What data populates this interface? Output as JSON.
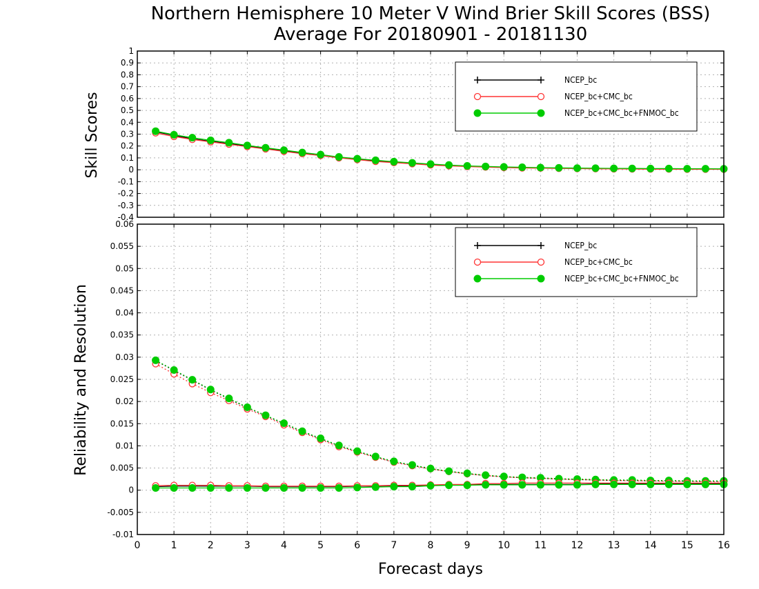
{
  "figure": {
    "title_line1": "Northern Hemisphere 10 Meter V Wind Brier Skill Scores (BSS)",
    "title_line2": "Average For 20180901 - 20181130",
    "xlabel": "Forecast days"
  },
  "chart_data": [
    {
      "type": "line",
      "ylabel": "Skill Scores",
      "xlim": [
        0,
        16
      ],
      "ylim": [
        -0.4,
        1
      ],
      "yticks": [
        "1",
        "0.9",
        "0.8",
        "0.7",
        "0.6",
        "0.5",
        "0.4",
        "0.3",
        "0.2",
        "0.1",
        "0",
        "-0.1",
        "-0.2",
        "-0.3",
        "-0.4"
      ],
      "grid": true,
      "legend_position": "top-right",
      "x": [
        0.5,
        1,
        1.5,
        2,
        2.5,
        3,
        3.5,
        4,
        4.5,
        5,
        5.5,
        6,
        6.5,
        7,
        7.5,
        8,
        8.5,
        9,
        9.5,
        10,
        10.5,
        11,
        11.5,
        12,
        12.5,
        13,
        13.5,
        14,
        14.5,
        15,
        15.5,
        16
      ],
      "series": [
        {
          "name": "NCEP_bc",
          "color": "#000000",
          "marker": "plus",
          "values": [
            0.32,
            0.29,
            0.26,
            0.24,
            0.22,
            0.2,
            0.18,
            0.16,
            0.14,
            0.12,
            0.1,
            0.09,
            0.075,
            0.065,
            0.055,
            0.045,
            0.035,
            0.03,
            0.025,
            0.02,
            0.018,
            0.015,
            0.013,
            0.012,
            0.01,
            0.01,
            0.008,
            0.008,
            0.007,
            0.007,
            0.006,
            0.006
          ]
        },
        {
          "name": "NCEP_bc+CMC_bc",
          "color": "#ff3333",
          "marker": "open-circle",
          "values": [
            0.31,
            0.28,
            0.255,
            0.235,
            0.215,
            0.195,
            0.175,
            0.155,
            0.135,
            0.12,
            0.1,
            0.085,
            0.07,
            0.06,
            0.05,
            0.04,
            0.033,
            0.027,
            0.022,
            0.018,
            0.015,
            0.013,
            0.011,
            0.01,
            0.008,
            0.007,
            0.006,
            0.005,
            0.005,
            0.004,
            0.004,
            0.004
          ]
        },
        {
          "name": "NCEP_bc+CMC_bc+FNMOC_bc",
          "color": "#00cc00",
          "marker": "filled-circle",
          "values": [
            0.325,
            0.295,
            0.27,
            0.248,
            0.228,
            0.205,
            0.185,
            0.165,
            0.145,
            0.128,
            0.108,
            0.093,
            0.08,
            0.068,
            0.058,
            0.048,
            0.04,
            0.033,
            0.028,
            0.024,
            0.021,
            0.018,
            0.016,
            0.014,
            0.013,
            0.012,
            0.011,
            0.01,
            0.01,
            0.009,
            0.009,
            0.008
          ]
        }
      ]
    },
    {
      "type": "line",
      "ylabel": "Reliability and Resolution",
      "xlim": [
        0,
        16
      ],
      "ylim": [
        -0.01,
        0.06
      ],
      "xticks": [
        "0",
        "1",
        "2",
        "3",
        "4",
        "5",
        "6",
        "7",
        "8",
        "9",
        "10",
        "11",
        "12",
        "13",
        "14",
        "15",
        "16"
      ],
      "yticks": [
        "0.06",
        "0.055",
        "0.05",
        "0.045",
        "0.04",
        "0.035",
        "0.03",
        "0.025",
        "0.02",
        "0.015",
        "0.01",
        "0.005",
        "0",
        "-0.005",
        "-0.01"
      ],
      "grid": true,
      "legend_position": "top-right",
      "x": [
        0.5,
        1,
        1.5,
        2,
        2.5,
        3,
        3.5,
        4,
        4.5,
        5,
        5.5,
        6,
        6.5,
        7,
        7.5,
        8,
        8.5,
        9,
        9.5,
        10,
        10.5,
        11,
        11.5,
        12,
        12.5,
        13,
        13.5,
        14,
        14.5,
        15,
        15.5,
        16
      ],
      "series": [
        {
          "name": "NCEP_bc",
          "color": "#000000",
          "marker": "plus",
          "style": "dotted",
          "values": [
            0.0292,
            0.027,
            0.0248,
            0.0226,
            0.0206,
            0.0186,
            0.0168,
            0.015,
            0.0132,
            0.0116,
            0.01,
            0.0087,
            0.0075,
            0.0064,
            0.0056,
            0.0048,
            0.0042,
            0.0037,
            0.0033,
            0.003,
            0.0028,
            0.0027,
            0.0025,
            0.0024,
            0.0023,
            0.0022,
            0.0022,
            0.0021,
            0.0021,
            0.002,
            0.002,
            0.002
          ]
        },
        {
          "name": "NCEP_bc+CMC_bc",
          "color": "#ff3333",
          "marker": "open-circle",
          "style": "dotted",
          "values": [
            0.0285,
            0.0262,
            0.024,
            0.022,
            0.0202,
            0.0183,
            0.0166,
            0.0147,
            0.013,
            0.0114,
            0.0098,
            0.0086,
            0.0074,
            0.0063,
            0.0055,
            0.0048,
            0.0042,
            0.0037,
            0.0033,
            0.003,
            0.0028,
            0.0027,
            0.0025,
            0.0024,
            0.0023,
            0.0022,
            0.0021,
            0.0021,
            0.002,
            0.002,
            0.0019,
            0.0019
          ]
        },
        {
          "name": "NCEP_bc+CMC_bc+FNMOC_bc",
          "color": "#00cc00",
          "marker": "filled-circle",
          "style": "dotted",
          "values": [
            0.0293,
            0.0271,
            0.0249,
            0.0227,
            0.0207,
            0.0187,
            0.0169,
            0.0151,
            0.0133,
            0.0117,
            0.0101,
            0.0088,
            0.0076,
            0.0065,
            0.0057,
            0.0049,
            0.0043,
            0.0038,
            0.0034,
            0.0031,
            0.0029,
            0.0028,
            0.0026,
            0.0025,
            0.0024,
            0.0023,
            0.0023,
            0.0022,
            0.0022,
            0.0021,
            0.0021,
            0.0021
          ]
        },
        {
          "name": "NCEP_bc",
          "color": "#000000",
          "marker": "plus",
          "style": "solid",
          "values": [
            0.0008,
            0.0009,
            0.0009,
            0.0009,
            0.0009,
            0.0009,
            0.0008,
            0.0008,
            0.0008,
            0.0008,
            0.0008,
            0.0009,
            0.0009,
            0.001,
            0.001,
            0.0011,
            0.0012,
            0.0012,
            0.0013,
            0.0013,
            0.0013,
            0.0013,
            0.0013,
            0.0013,
            0.0014,
            0.0014,
            0.0014,
            0.0014,
            0.0014,
            0.0014,
            0.0014,
            0.0014
          ]
        },
        {
          "name": "NCEP_bc+CMC_bc",
          "color": "#ff3333",
          "marker": "open-circle",
          "style": "solid",
          "values": [
            0.001,
            0.0011,
            0.0011,
            0.0011,
            0.001,
            0.001,
            0.0009,
            0.0009,
            0.0009,
            0.0009,
            0.0009,
            0.001,
            0.001,
            0.0011,
            0.0011,
            0.0012,
            0.0013,
            0.0013,
            0.0015,
            0.0015,
            0.0016,
            0.0016,
            0.0016,
            0.0016,
            0.0016,
            0.0016,
            0.0016,
            0.0016,
            0.0016,
            0.0016,
            0.0016,
            0.0016
          ]
        },
        {
          "name": "NCEP_bc+CMC_bc+FNMOC_bc",
          "color": "#00cc00",
          "marker": "filled-circle",
          "style": "solid",
          "values": [
            0.0005,
            0.0005,
            0.0005,
            0.0005,
            0.0005,
            0.0005,
            0.0005,
            0.0005,
            0.0005,
            0.0005,
            0.0005,
            0.0006,
            0.0007,
            0.0008,
            0.0008,
            0.001,
            0.0011,
            0.0011,
            0.0012,
            0.0012,
            0.0012,
            0.0012,
            0.0012,
            0.0012,
            0.0013,
            0.0013,
            0.0013,
            0.0013,
            0.0013,
            0.0013,
            0.0013,
            0.0013
          ]
        }
      ]
    }
  ]
}
